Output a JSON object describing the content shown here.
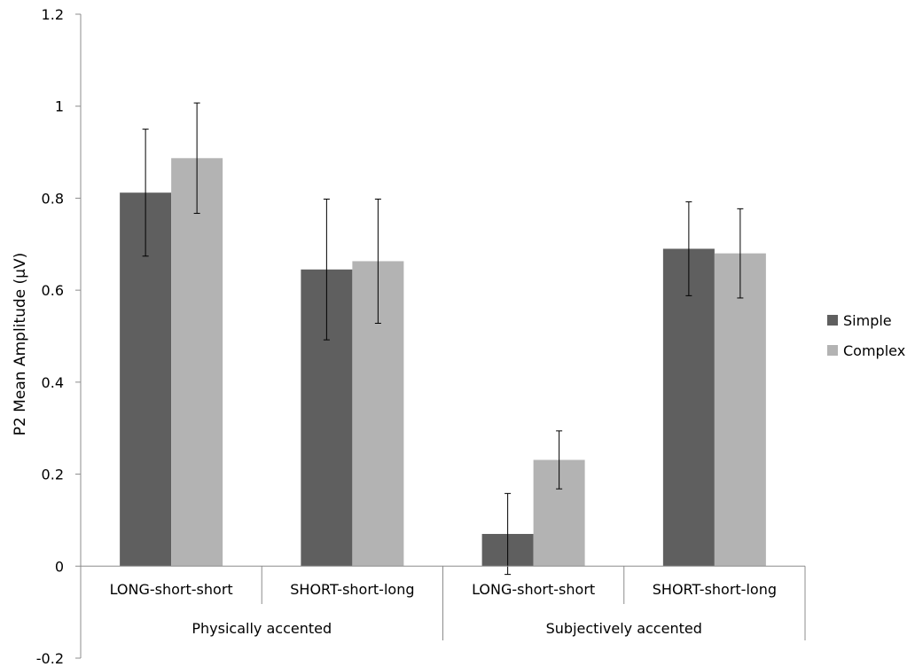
{
  "chart_data": {
    "type": "bar",
    "ylabel": "P2 Mean Amplitude (µV)",
    "ylim": [
      -0.2,
      1.2
    ],
    "yticks": [
      "-0.2",
      "0",
      "0.2",
      "0.4",
      "0.6",
      "0.8",
      "1",
      "1.2"
    ],
    "ytick_values": [
      -0.2,
      0,
      0.2,
      0.4,
      0.6,
      0.8,
      1.0,
      1.2
    ],
    "grid": false,
    "legend_position": "right",
    "categories": [
      "LONG-short-short",
      "SHORT-short-long",
      "LONG-short-short",
      "SHORT-short-long"
    ],
    "groups": [
      {
        "label": "Physically accented",
        "span": 2
      },
      {
        "label": "Subjectively accented",
        "span": 2
      }
    ],
    "series": [
      {
        "name": "Simple",
        "color": "#5f5f5f",
        "values": [
          0.812,
          0.645,
          0.07,
          0.69
        ],
        "error": [
          0.138,
          0.153,
          0.088,
          0.102
        ]
      },
      {
        "name": "Complex",
        "color": "#b3b3b3",
        "values": [
          0.887,
          0.663,
          0.231,
          0.68
        ],
        "error": [
          0.12,
          0.135,
          0.063,
          0.097
        ]
      }
    ]
  }
}
